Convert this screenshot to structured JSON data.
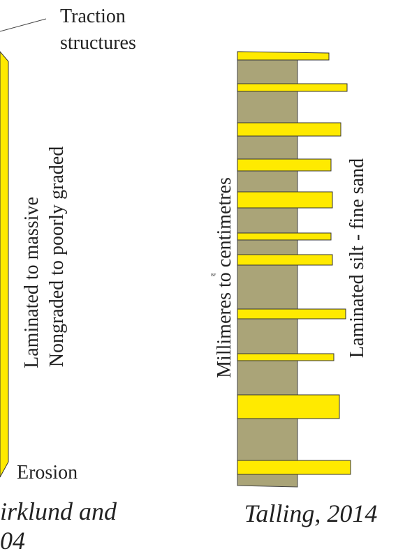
{
  "left_column": {
    "callout": [
      "Traction",
      "structures"
    ],
    "description": [
      "Laminated to massive",
      "Nongraded to poorly graded"
    ],
    "base": "Erosion",
    "citation": [
      "irklund and",
      "04"
    ]
  },
  "right_column": {
    "thickness": "Millimeres to centimetres",
    "description": "Laminated silt -  fine sand",
    "mark": "BF",
    "citation": "Talling, 2014"
  }
}
